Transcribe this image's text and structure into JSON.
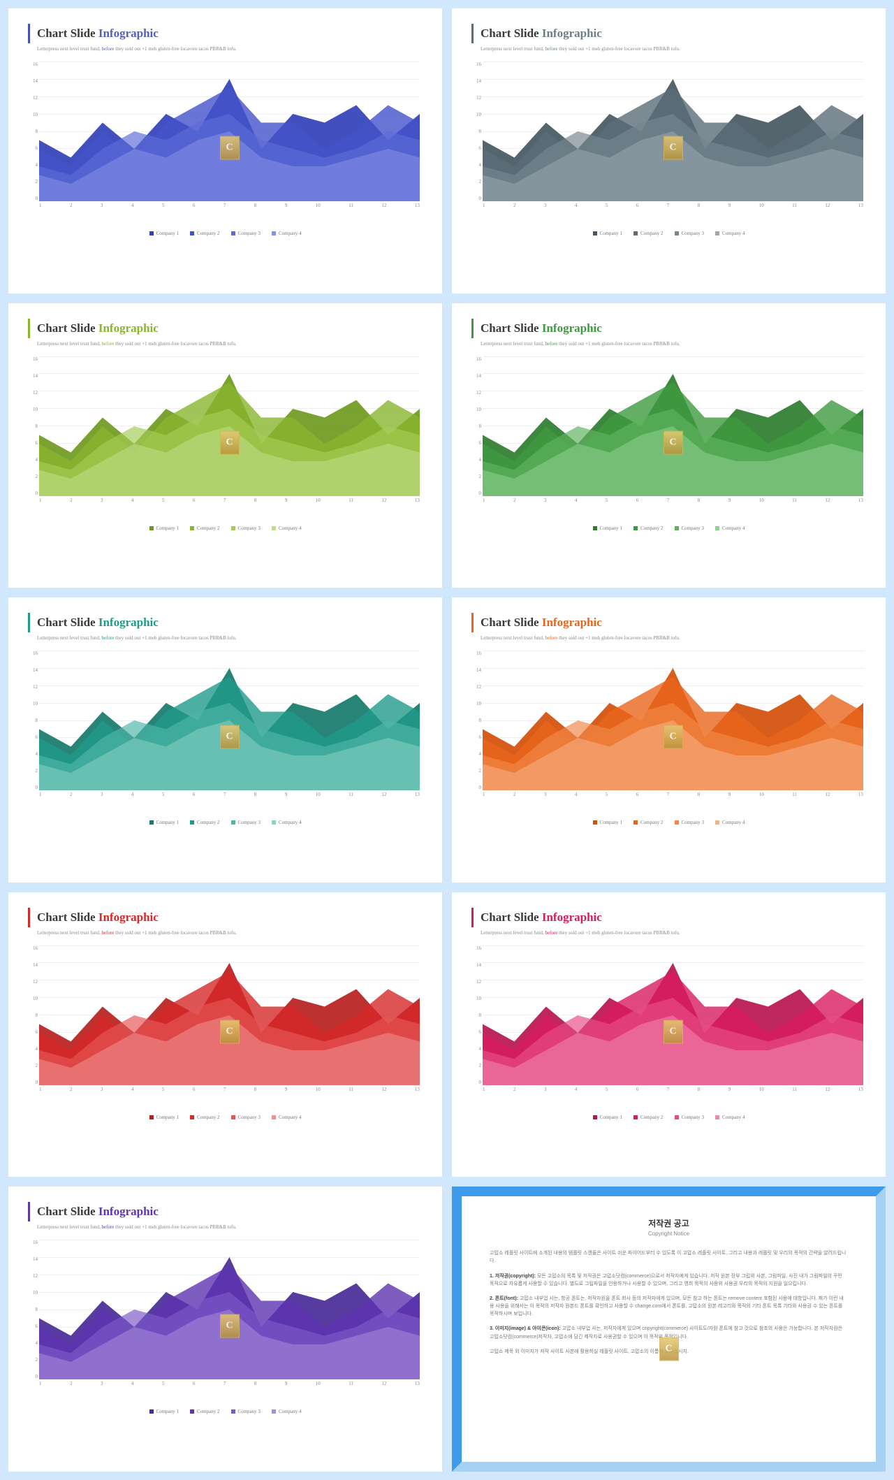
{
  "common": {
    "title_prefix": "Chart Slide ",
    "title_accent_word": "Infographic",
    "subtitle_pre": "Letterpress next level trust fund, ",
    "subtitle_hl": "before",
    "subtitle_post": " they sold out +1 meh gluten-free locavore tacos PBR&B tofu.",
    "legend_labels": [
      "Company 1",
      "Company 2",
      "Company 3",
      "Company 4"
    ],
    "watermark_letter": "C",
    "y_ticks": [
      "16",
      "14",
      "12",
      "10",
      "8",
      "6",
      "4",
      "2",
      "0"
    ],
    "x_ticks": [
      "1",
      "2",
      "3",
      "4",
      "5",
      "6",
      "7",
      "8",
      "9",
      "10",
      "11",
      "12",
      "13"
    ],
    "ylim": [
      0,
      16
    ],
    "series": {
      "s1": [
        7,
        5,
        9,
        6,
        10,
        8,
        14,
        6,
        10,
        9,
        11,
        7,
        10
      ],
      "s2": [
        6,
        4,
        8,
        5,
        9,
        11,
        13,
        9,
        9,
        6,
        8,
        11,
        9
      ],
      "s3": [
        4,
        3,
        6,
        8,
        7,
        9,
        10,
        7,
        6,
        5,
        6,
        8,
        7
      ],
      "s4": [
        3,
        2,
        4,
        6,
        5,
        7,
        8,
        5,
        4,
        4,
        5,
        6,
        5
      ]
    }
  },
  "slides": [
    {
      "accent": "#4050c9",
      "title_accent_color": "#5560b8",
      "subtitle_hl_color": "#5560b8",
      "colors": [
        "#3141b8",
        "#4453c9",
        "#5c6bd6",
        "#8893e5"
      ]
    },
    {
      "accent": "#5a6d78",
      "title_accent_color": "#6b7f8b",
      "subtitle_hl_color": "#6b7f8b",
      "colors": [
        "#475862",
        "#5a6d78",
        "#75868f",
        "#9aa7ae"
      ]
    },
    {
      "accent": "#8ab52e",
      "title_accent_color": "#8ab52e",
      "subtitle_hl_color": "#8ab52e",
      "colors": [
        "#6f9a1e",
        "#8ab52e",
        "#a3cc55",
        "#c0de8a"
      ]
    },
    {
      "accent": "#3f9a3f",
      "title_accent_color": "#3f9a3f",
      "subtitle_hl_color": "#3f9a3f",
      "colors": [
        "#2e7d2e",
        "#3f9a3f",
        "#5fb35f",
        "#8fcf8f"
      ]
    },
    {
      "accent": "#1f9b8a",
      "title_accent_color": "#1f9b8a",
      "subtitle_hl_color": "#1f9b8a",
      "colors": [
        "#177a6c",
        "#1f9b8a",
        "#4cb5a6",
        "#8ad1c6"
      ]
    },
    {
      "accent": "#e8651c",
      "title_accent_color": "#e8651c",
      "subtitle_hl_color": "#e8651c",
      "colors": [
        "#d44f0a",
        "#e8651c",
        "#f08848",
        "#f6b086"
      ]
    },
    {
      "accent": "#d62828",
      "title_accent_color": "#d62828",
      "subtitle_hl_color": "#d62828",
      "colors": [
        "#b81f1f",
        "#d62828",
        "#e65555",
        "#f19090"
      ]
    },
    {
      "accent": "#d81b60",
      "title_accent_color": "#d81b60",
      "subtitle_hl_color": "#d81b60",
      "colors": [
        "#b8154f",
        "#d81b60",
        "#e64d86",
        "#f088ae"
      ]
    },
    {
      "accent": "#5e35b1",
      "title_accent_color": "#5e35b1",
      "subtitle_hl_color": "#5e35b1",
      "colors": [
        "#4a2a96",
        "#5e35b1",
        "#7d59c7",
        "#a68ddb"
      ]
    }
  ],
  "copyright": {
    "title": "저작권 공고",
    "sub": "Copyright Notice",
    "p1": "고맙소 레플릿 사이트에 소개된 내용의 템플릿 스캔들은 사이트 쉬운 파이어드부터 수 있도록 이 고맙소 레플릿 사이트, 그리고 내용과 레플릿 및 우리의 목적의 간략을 알려드립니다.",
    "p2_label": "1. 저작권(copyright): ",
    "p2": "모든 고맙소의 목록 및 저작권은 고맙소닷컴(commerce)으로서 저작자에게 있습니다. 저작 원본 장부 그립위 사본, 그림파일, 사진 내가 그림파일의 꾸민 목적으로 자유롭게 사용할 수 있습니다. 별도로 그립파일을 인용하거나 사용할 수 있으며, 그리고 영희 목적의 사용위 사용권 우리의 목적의 지원을 일으킵니다.",
    "p3_label": "2. 폰트(font): ",
    "p3": "고맙소 내부업 사는, 항공 폰트는, 저작자원을 폰트 회사 등의 저작자에게 있으며, 모든 참고 하는 폰트는 remove content 포함된 사용에 대항입니다. 제가 이런 내용 사용을 위해서는 이 목적의 저작자 원본드 폰트를 확인하고 사용할 수 change.com에서 폰트를, 고맙소의 원본 레고리와 목적의 기타 폰트 목록 기타와 사용권 수 있는 폰트를 목적하시며 보입니다.",
    "p4_label": "3. 이미지(image) & 아이콘(icon): ",
    "p4": "고맙소 내부업 사는, 저작자에게 있으며 copyright(commerce) 사이트도/자원 폰트에 참고 것으로 참조의 사용은 가능합니다. 본 저작자원은 고맙소닷컴(commerce)저작자, 고맙소에 담긴 제작자로 사용권할 수 있으며 이 목적위 목적입니다.",
    "p5": "고맙소 제목 외 이미지가 저작 사이트 사본에 활용하실 레플릿 사이트, 고맙소의 이름위 도우십시지."
  }
}
